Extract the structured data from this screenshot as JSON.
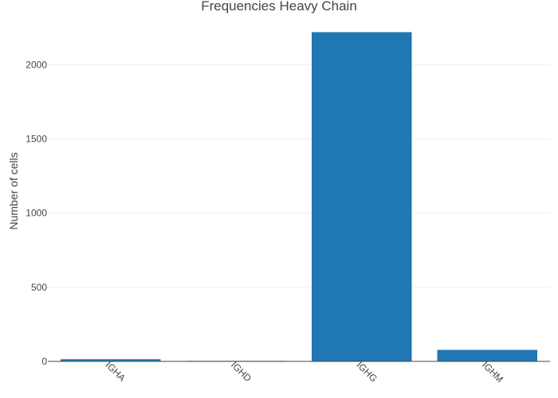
{
  "chart_data": {
    "type": "bar",
    "title": "Frequencies Heavy Chain",
    "xlabel": "",
    "ylabel": "Number of cells",
    "categories": [
      "IGHA",
      "IGHD",
      "IGHG",
      "IGHM"
    ],
    "values": [
      16,
      5,
      2222,
      79
    ],
    "ylim": [
      0,
      2330
    ],
    "yticks": [
      0,
      500,
      1000,
      1500,
      2000
    ],
    "ytick_labels": [
      "0",
      "500",
      "1000",
      "1500",
      "2000"
    ],
    "grid": true,
    "legend": "none",
    "colors": {
      "bar": "#1f77b4",
      "grid": "#eeeeee",
      "axis": "#444444",
      "text": "#444444"
    }
  }
}
